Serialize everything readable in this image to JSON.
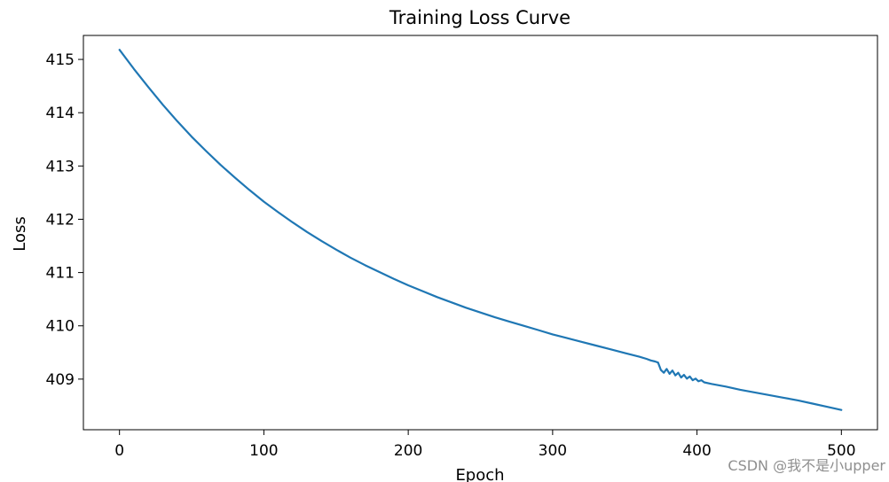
{
  "chart_data": {
    "type": "line",
    "title": "Training Loss Curve",
    "xlabel": "Epoch",
    "ylabel": "Loss",
    "xlim": [
      -25,
      525
    ],
    "ylim": [
      408.05,
      415.45
    ],
    "xticks": [
      0,
      100,
      200,
      300,
      400,
      500
    ],
    "yticks": [
      409,
      410,
      411,
      412,
      413,
      414,
      415
    ],
    "grid": false,
    "series": [
      {
        "name": "Training Loss",
        "color": "#1f77b4",
        "x": [
          0,
          10,
          20,
          30,
          40,
          50,
          60,
          70,
          80,
          90,
          100,
          110,
          120,
          130,
          140,
          150,
          160,
          170,
          180,
          190,
          200,
          210,
          220,
          230,
          240,
          250,
          260,
          270,
          280,
          290,
          300,
          310,
          320,
          330,
          340,
          350,
          360,
          365,
          368,
          371,
          373,
          375,
          377,
          379,
          381,
          383,
          385,
          387,
          389,
          391,
          393,
          395,
          397,
          399,
          401,
          403,
          405,
          410,
          420,
          430,
          440,
          450,
          460,
          470,
          480,
          490,
          500
        ],
        "y": [
          415.18,
          414.82,
          414.48,
          414.15,
          413.84,
          413.55,
          413.28,
          413.02,
          412.78,
          412.55,
          412.33,
          412.13,
          411.94,
          411.76,
          411.59,
          411.43,
          411.28,
          411.14,
          411.01,
          410.88,
          410.76,
          410.65,
          410.54,
          410.44,
          410.34,
          410.25,
          410.16,
          410.08,
          410.0,
          409.92,
          409.84,
          409.77,
          409.7,
          409.63,
          409.56,
          409.49,
          409.42,
          409.38,
          409.35,
          409.33,
          409.31,
          409.17,
          409.12,
          409.19,
          409.1,
          409.16,
          409.07,
          409.12,
          409.03,
          409.08,
          409.01,
          409.05,
          408.98,
          409.01,
          408.96,
          408.98,
          408.94,
          408.91,
          408.86,
          408.8,
          408.75,
          408.7,
          408.65,
          408.6,
          408.54,
          408.48,
          408.42
        ]
      }
    ]
  },
  "watermark": "CSDN @我不是小upper"
}
